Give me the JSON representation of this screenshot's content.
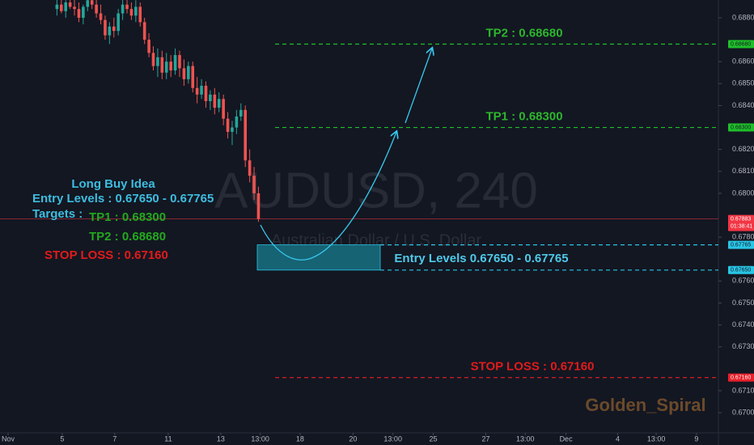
{
  "chart_data": {
    "type": "candlestick",
    "watermark": "AUDUSD, 240",
    "watermark_subtitle": "Australian Dollar / U.S. Dollar",
    "signature": "Golden_Spiral",
    "up_color": "#26a69a",
    "down_color": "#ef5350",
    "open": [
      0.6884,
      0.6886,
      0.6883,
      0.6887,
      0.6885,
      0.6884,
      0.688,
      0.6885,
      0.6888,
      0.6886,
      0.6882,
      0.6879,
      0.6872,
      0.6876,
      0.6874,
      0.6882,
      0.6886,
      0.6884,
      0.6881,
      0.6885,
      0.6878,
      0.687,
      0.6864,
      0.6858,
      0.6862,
      0.6855,
      0.686,
      0.6856,
      0.6863,
      0.6857,
      0.6852,
      0.6858,
      0.6848,
      0.6845,
      0.6849,
      0.6842,
      0.6845,
      0.6839,
      0.6843,
      0.6834,
      0.6828,
      0.683,
      0.6835,
      0.6838,
      0.6815,
      0.6808,
      0.68
    ],
    "high": [
      0.689,
      0.6889,
      0.6888,
      0.6892,
      0.6889,
      0.6887,
      0.6886,
      0.6891,
      0.6892,
      0.6889,
      0.6886,
      0.6881,
      0.6878,
      0.688,
      0.6884,
      0.6889,
      0.689,
      0.6887,
      0.6888,
      0.6887,
      0.688,
      0.6873,
      0.6867,
      0.6866,
      0.6865,
      0.6864,
      0.6863,
      0.6866,
      0.6865,
      0.6861,
      0.686,
      0.686,
      0.6853,
      0.6852,
      0.6851,
      0.6847,
      0.6848,
      0.6846,
      0.6845,
      0.6837,
      0.6833,
      0.6838,
      0.6841,
      0.684,
      0.682,
      0.6812,
      0.6803
    ],
    "low": [
      0.6881,
      0.6882,
      0.688,
      0.6884,
      0.6881,
      0.6878,
      0.6877,
      0.6883,
      0.6884,
      0.688,
      0.6877,
      0.687,
      0.6868,
      0.6871,
      0.6872,
      0.6879,
      0.6882,
      0.6879,
      0.6878,
      0.6876,
      0.6868,
      0.6862,
      0.6856,
      0.6853,
      0.6852,
      0.6852,
      0.6853,
      0.6854,
      0.6853,
      0.6849,
      0.685,
      0.6846,
      0.6841,
      0.6843,
      0.6839,
      0.6838,
      0.6836,
      0.6837,
      0.6831,
      0.6825,
      0.6822,
      0.6827,
      0.6833,
      0.6812,
      0.6805,
      0.6797,
      0.6787
    ],
    "close": [
      0.6886,
      0.6883,
      0.6887,
      0.6885,
      0.6884,
      0.688,
      0.6885,
      0.6888,
      0.6886,
      0.6882,
      0.6879,
      0.6872,
      0.6876,
      0.6874,
      0.6882,
      0.6886,
      0.6884,
      0.6881,
      0.6885,
      0.6878,
      0.687,
      0.6864,
      0.6858,
      0.6862,
      0.6855,
      0.686,
      0.6856,
      0.6863,
      0.6857,
      0.6852,
      0.6858,
      0.6848,
      0.6845,
      0.6849,
      0.6842,
      0.6845,
      0.6839,
      0.6843,
      0.6834,
      0.6828,
      0.683,
      0.6835,
      0.6838,
      0.6815,
      0.6808,
      0.68,
      0.67883
    ],
    "xlim": [
      0,
      164
    ],
    "ylim": [
      0.66908,
      0.68881
    ],
    "xticks": [
      {
        "value": 1.85,
        "label": "Nov"
      },
      {
        "value": 14.2,
        "label": "5"
      },
      {
        "value": 26.2,
        "label": "7"
      },
      {
        "value": 38.4,
        "label": "11"
      },
      {
        "value": 50.4,
        "label": "13"
      },
      {
        "value": 59.4,
        "label": "13:00"
      },
      {
        "value": 68.5,
        "label": "18"
      },
      {
        "value": 80.6,
        "label": "20"
      },
      {
        "value": 89.7,
        "label": "13:00"
      },
      {
        "value": 98.9,
        "label": "25"
      },
      {
        "value": 110.9,
        "label": "27"
      },
      {
        "value": 119.9,
        "label": "13:00"
      },
      {
        "value": 129.2,
        "label": "Dec"
      },
      {
        "value": 141,
        "label": "4"
      },
      {
        "value": 149.8,
        "label": "13:00"
      },
      {
        "value": 159,
        "label": "9"
      }
    ],
    "yticks": [
      {
        "value": 0.688,
        "label": "0.68800"
      },
      {
        "value": 0.686,
        "label": "0.68600"
      },
      {
        "value": 0.685,
        "label": "0.68500"
      },
      {
        "value": 0.684,
        "label": "0.68400"
      },
      {
        "value": 0.682,
        "label": "0.68200"
      },
      {
        "value": 0.681,
        "label": "0.68100"
      },
      {
        "value": 0.68,
        "label": "0.68000"
      },
      {
        "value": 0.678,
        "label": "0.67800"
      },
      {
        "value": 0.676,
        "label": "0.67600"
      },
      {
        "value": 0.675,
        "label": "0.67500"
      },
      {
        "value": 0.674,
        "label": "0.67400"
      },
      {
        "value": 0.673,
        "label": "0.67300"
      },
      {
        "value": 0.671,
        "label": "0.67100"
      },
      {
        "value": 0.67,
        "label": "0.67000"
      }
    ],
    "levels": [
      {
        "name": "TP2",
        "value": 0.6868,
        "label": "TP2  : 0.68680",
        "axis_label": "0.68680",
        "color": "#1fbf2a"
      },
      {
        "name": "TP1",
        "value": 0.683,
        "label": "TP1  : 0.68300",
        "axis_label": "0.68300",
        "color": "#1fbf2a"
      },
      {
        "name": "Entry high",
        "value": 0.67765,
        "axis_label": "0.67765",
        "color": "#29c5e6"
      },
      {
        "name": "Entry low",
        "value": 0.6765,
        "axis_label": "0.67650",
        "color": "#29c5e6"
      },
      {
        "name": "STOP LOSS",
        "value": 0.6716,
        "label": "STOP LOSS : 0.67160",
        "axis_label": "0.67160",
        "color": "#e8202a"
      }
    ],
    "entry_label": "Entry Levels 0.67650 - 0.67765",
    "last_price": {
      "value": 0.67883,
      "label": "0.67883",
      "countdown": "01:38:41",
      "color": "#f23645"
    },
    "note": {
      "title": "Long Buy Idea",
      "entry": "Entry Levels  : 0.67650 - 0.67765",
      "targets": "Targets :",
      "tp1": "TP1  : 0.68300",
      "tp2": "TP2  : 0.68680",
      "stop": "STOP LOSS : 0.67160"
    }
  }
}
